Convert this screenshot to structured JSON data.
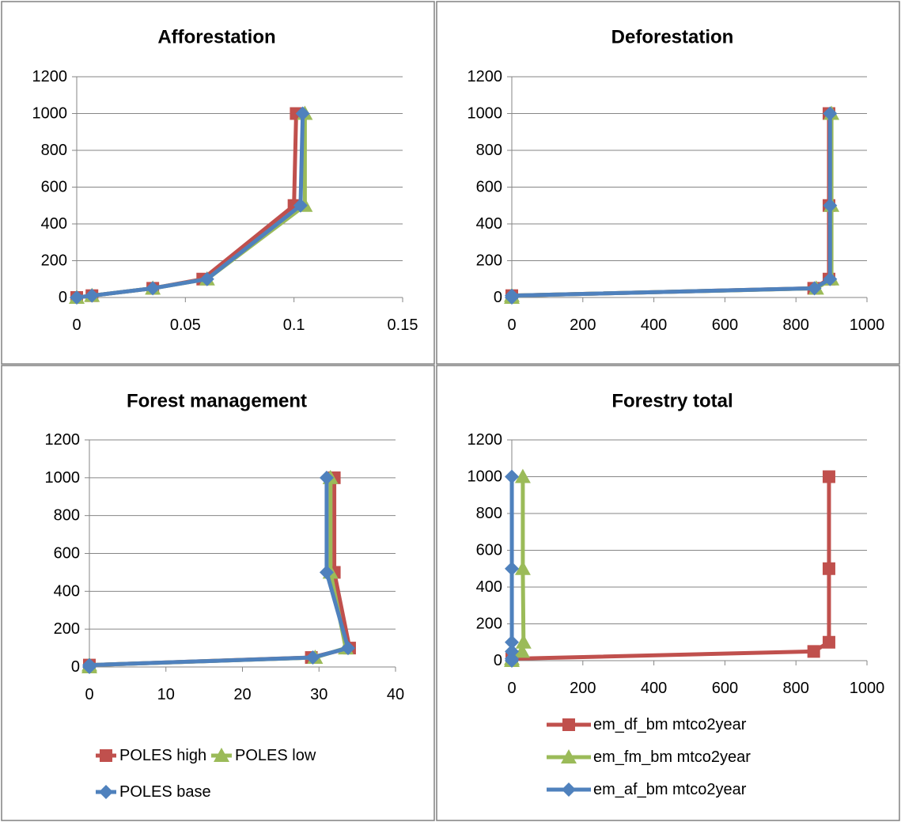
{
  "colors": {
    "red": "#C0504D",
    "green": "#9BBB59",
    "blue": "#4F81BD",
    "grid": "#868686",
    "border": "#808080",
    "text": "#000000"
  },
  "chart_data": [
    {
      "type": "scatter",
      "title": "Afforestation",
      "xlabel": "",
      "ylabel": "",
      "xlim": [
        0,
        0.15
      ],
      "ylim": [
        0,
        1200
      ],
      "x_ticks": [
        "0",
        "0.05",
        "0.1",
        "0.15"
      ],
      "y_ticks": [
        "0",
        "200",
        "400",
        "600",
        "800",
        "1000",
        "1200"
      ],
      "grid": true,
      "legend": "none",
      "series": [
        {
          "color": "red",
          "marker": "square",
          "points": [
            [
              0.0,
              0
            ],
            [
              0.007,
              10
            ],
            [
              0.035,
              50
            ],
            [
              0.058,
              100
            ],
            [
              0.1,
              500
            ],
            [
              0.101,
              1000
            ]
          ]
        },
        {
          "color": "green",
          "marker": "triangle",
          "points": [
            [
              0.0,
              0
            ],
            [
              0.007,
              10
            ],
            [
              0.035,
              50
            ],
            [
              0.06,
              100
            ],
            [
              0.105,
              500
            ],
            [
              0.105,
              1000
            ]
          ]
        },
        {
          "color": "blue",
          "marker": "diamond",
          "points": [
            [
              0.0,
              0
            ],
            [
              0.007,
              10
            ],
            [
              0.035,
              50
            ],
            [
              0.06,
              100
            ],
            [
              0.103,
              500
            ],
            [
              0.104,
              1000
            ]
          ]
        }
      ]
    },
    {
      "type": "scatter",
      "title": "Deforestation",
      "xlabel": "",
      "ylabel": "",
      "xlim": [
        0,
        1000
      ],
      "ylim": [
        0,
        1200
      ],
      "x_ticks": [
        "0",
        "200",
        "400",
        "600",
        "800",
        "1000"
      ],
      "y_ticks": [
        "0",
        "200",
        "400",
        "600",
        "800",
        "1000",
        "1200"
      ],
      "grid": true,
      "legend": "none",
      "series": [
        {
          "color": "red",
          "marker": "square",
          "points": [
            [
              0,
              0
            ],
            [
              0,
              10
            ],
            [
              850,
              50
            ],
            [
              893,
              100
            ],
            [
              893,
              500
            ],
            [
              893,
              1000
            ]
          ]
        },
        {
          "color": "green",
          "marker": "triangle",
          "points": [
            [
              0,
              0
            ],
            [
              0,
              10
            ],
            [
              857,
              50
            ],
            [
              900,
              100
            ],
            [
              900,
              500
            ],
            [
              900,
              1000
            ]
          ]
        },
        {
          "color": "blue",
          "marker": "diamond",
          "points": [
            [
              0,
              0
            ],
            [
              0,
              10
            ],
            [
              852,
              50
            ],
            [
              896,
              100
            ],
            [
              896,
              500
            ],
            [
              896,
              1000
            ]
          ]
        }
      ]
    },
    {
      "type": "scatter",
      "title": "Forest management",
      "xlabel": "",
      "ylabel": "",
      "xlim": [
        0,
        40
      ],
      "ylim": [
        0,
        1200
      ],
      "x_ticks": [
        "0",
        "10",
        "20",
        "30",
        "40"
      ],
      "y_ticks": [
        "0",
        "200",
        "400",
        "600",
        "800",
        "1000",
        "1200"
      ],
      "grid": true,
      "legend": "bottom",
      "series": [
        {
          "name": "POLES high",
          "color": "red",
          "marker": "square",
          "points": [
            [
              0,
              0
            ],
            [
              0,
              10
            ],
            [
              29,
              50
            ],
            [
              34,
              100
            ],
            [
              32,
              500
            ],
            [
              32,
              1000
            ]
          ]
        },
        {
          "name": "POLES low",
          "color": "green",
          "marker": "triangle",
          "points": [
            [
              0,
              0
            ],
            [
              0,
              10
            ],
            [
              29.5,
              50
            ],
            [
              33.5,
              100
            ],
            [
              31.5,
              500
            ],
            [
              31.5,
              1000
            ]
          ]
        },
        {
          "name": "POLES base",
          "color": "blue",
          "marker": "diamond",
          "points": [
            [
              0,
              0
            ],
            [
              0,
              10
            ],
            [
              29.2,
              50
            ],
            [
              33.8,
              100
            ],
            [
              31,
              500
            ],
            [
              31,
              1000
            ]
          ]
        }
      ]
    },
    {
      "type": "scatter",
      "title": "Forestry total",
      "xlabel": "",
      "ylabel": "",
      "xlim": [
        0,
        1000
      ],
      "ylim": [
        0,
        1200
      ],
      "x_ticks": [
        "0",
        "200",
        "400",
        "600",
        "800",
        "1000"
      ],
      "y_ticks": [
        "0",
        "200",
        "400",
        "600",
        "800",
        "1000",
        "1200"
      ],
      "grid": true,
      "legend": "bottom",
      "series": [
        {
          "name": "em_df_bm mtco2year",
          "color": "red",
          "marker": "square",
          "points": [
            [
              0,
              0
            ],
            [
              0,
              10
            ],
            [
              850,
              50
            ],
            [
              893,
              100
            ],
            [
              893,
              500
            ],
            [
              893,
              1000
            ]
          ]
        },
        {
          "name": "em_fm_bm mtco2year",
          "color": "green",
          "marker": "triangle",
          "points": [
            [
              0,
              0
            ],
            [
              0,
              10
            ],
            [
              29,
              50
            ],
            [
              33,
              100
            ],
            [
              31,
              500
            ],
            [
              31,
              1000
            ]
          ]
        },
        {
          "name": "em_af_bm mtco2year",
          "color": "blue",
          "marker": "diamond",
          "points": [
            [
              0,
              0
            ],
            [
              0,
              10
            ],
            [
              0.1,
              50
            ],
            [
              0.1,
              100
            ],
            [
              0.1,
              500
            ],
            [
              0.1,
              1000
            ]
          ]
        }
      ]
    }
  ]
}
